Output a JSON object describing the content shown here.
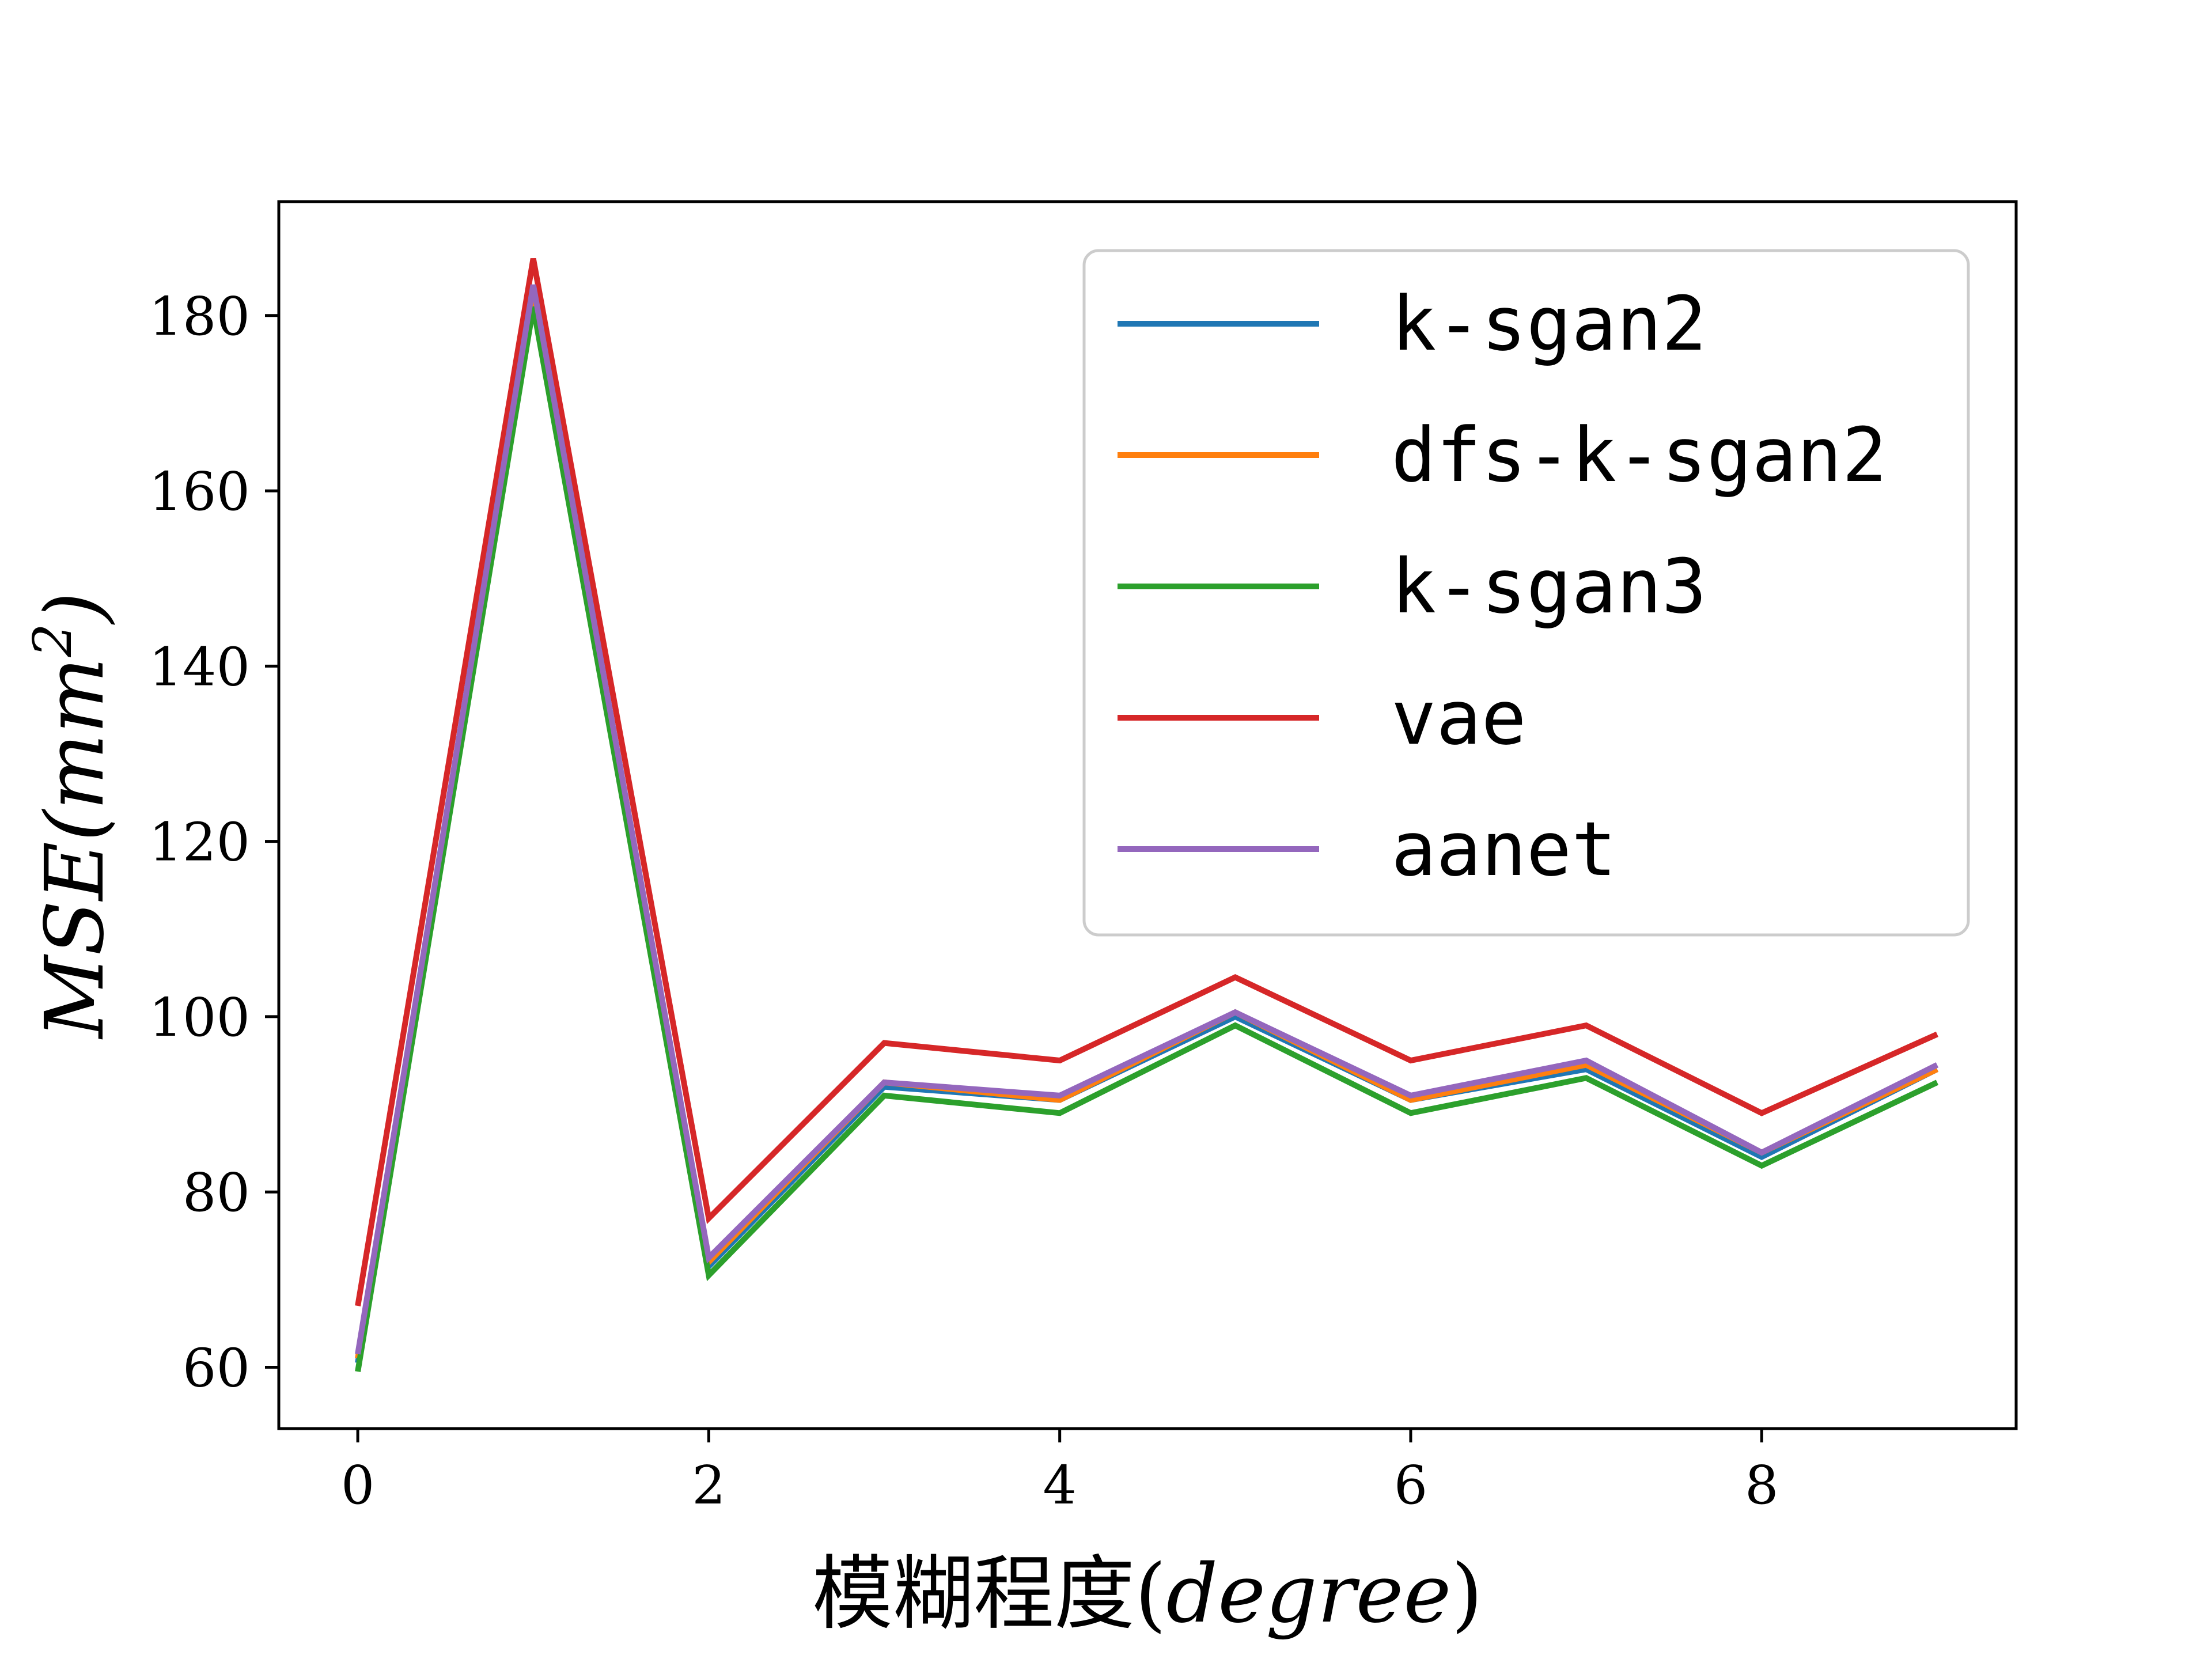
{
  "chart_data": {
    "type": "line",
    "x": [
      0,
      1,
      2,
      3,
      4,
      5,
      6,
      7,
      8,
      9
    ],
    "series": [
      {
        "name": "k-sgan2",
        "color": "#1f77b4",
        "values": [
          60.5,
          181.5,
          71.5,
          92.0,
          90.5,
          100.0,
          90.5,
          94.0,
          84.0,
          94.0
        ]
      },
      {
        "name": "dfs-k-sgan2",
        "color": "#ff7f0e",
        "values": [
          61.0,
          182.5,
          72.0,
          92.5,
          90.5,
          100.5,
          90.5,
          94.5,
          84.5,
          94.0
        ]
      },
      {
        "name": "k-sgan3",
        "color": "#2ca02c",
        "values": [
          59.5,
          181.0,
          70.5,
          91.0,
          89.0,
          99.0,
          89.0,
          93.0,
          83.0,
          92.5
        ]
      },
      {
        "name": "vae",
        "color": "#d62728",
        "values": [
          67.0,
          186.5,
          77.0,
          97.0,
          95.0,
          104.5,
          95.0,
          99.0,
          89.0,
          98.0
        ]
      },
      {
        "name": "aanet",
        "color": "#9467bd",
        "values": [
          61.5,
          183.5,
          72.5,
          92.5,
          91.0,
          100.5,
          91.0,
          95.0,
          84.5,
          94.5
        ]
      }
    ],
    "xticks": [
      "0",
      "2",
      "4",
      "6",
      "8"
    ],
    "yticks": [
      "60",
      "80",
      "100",
      "120",
      "140",
      "160",
      "180"
    ],
    "xlim": [
      -0.45,
      9.45
    ],
    "ylim": [
      53.0,
      193.0
    ],
    "xlabel_main": "模糊程度(",
    "xlabel_italic": "degree",
    "xlabel_close": ")",
    "ylabel": "MSE(mm",
    "ylabel_sup": "2",
    "ylabel_close": ")",
    "legend_position": "upper-right",
    "grid": false
  }
}
